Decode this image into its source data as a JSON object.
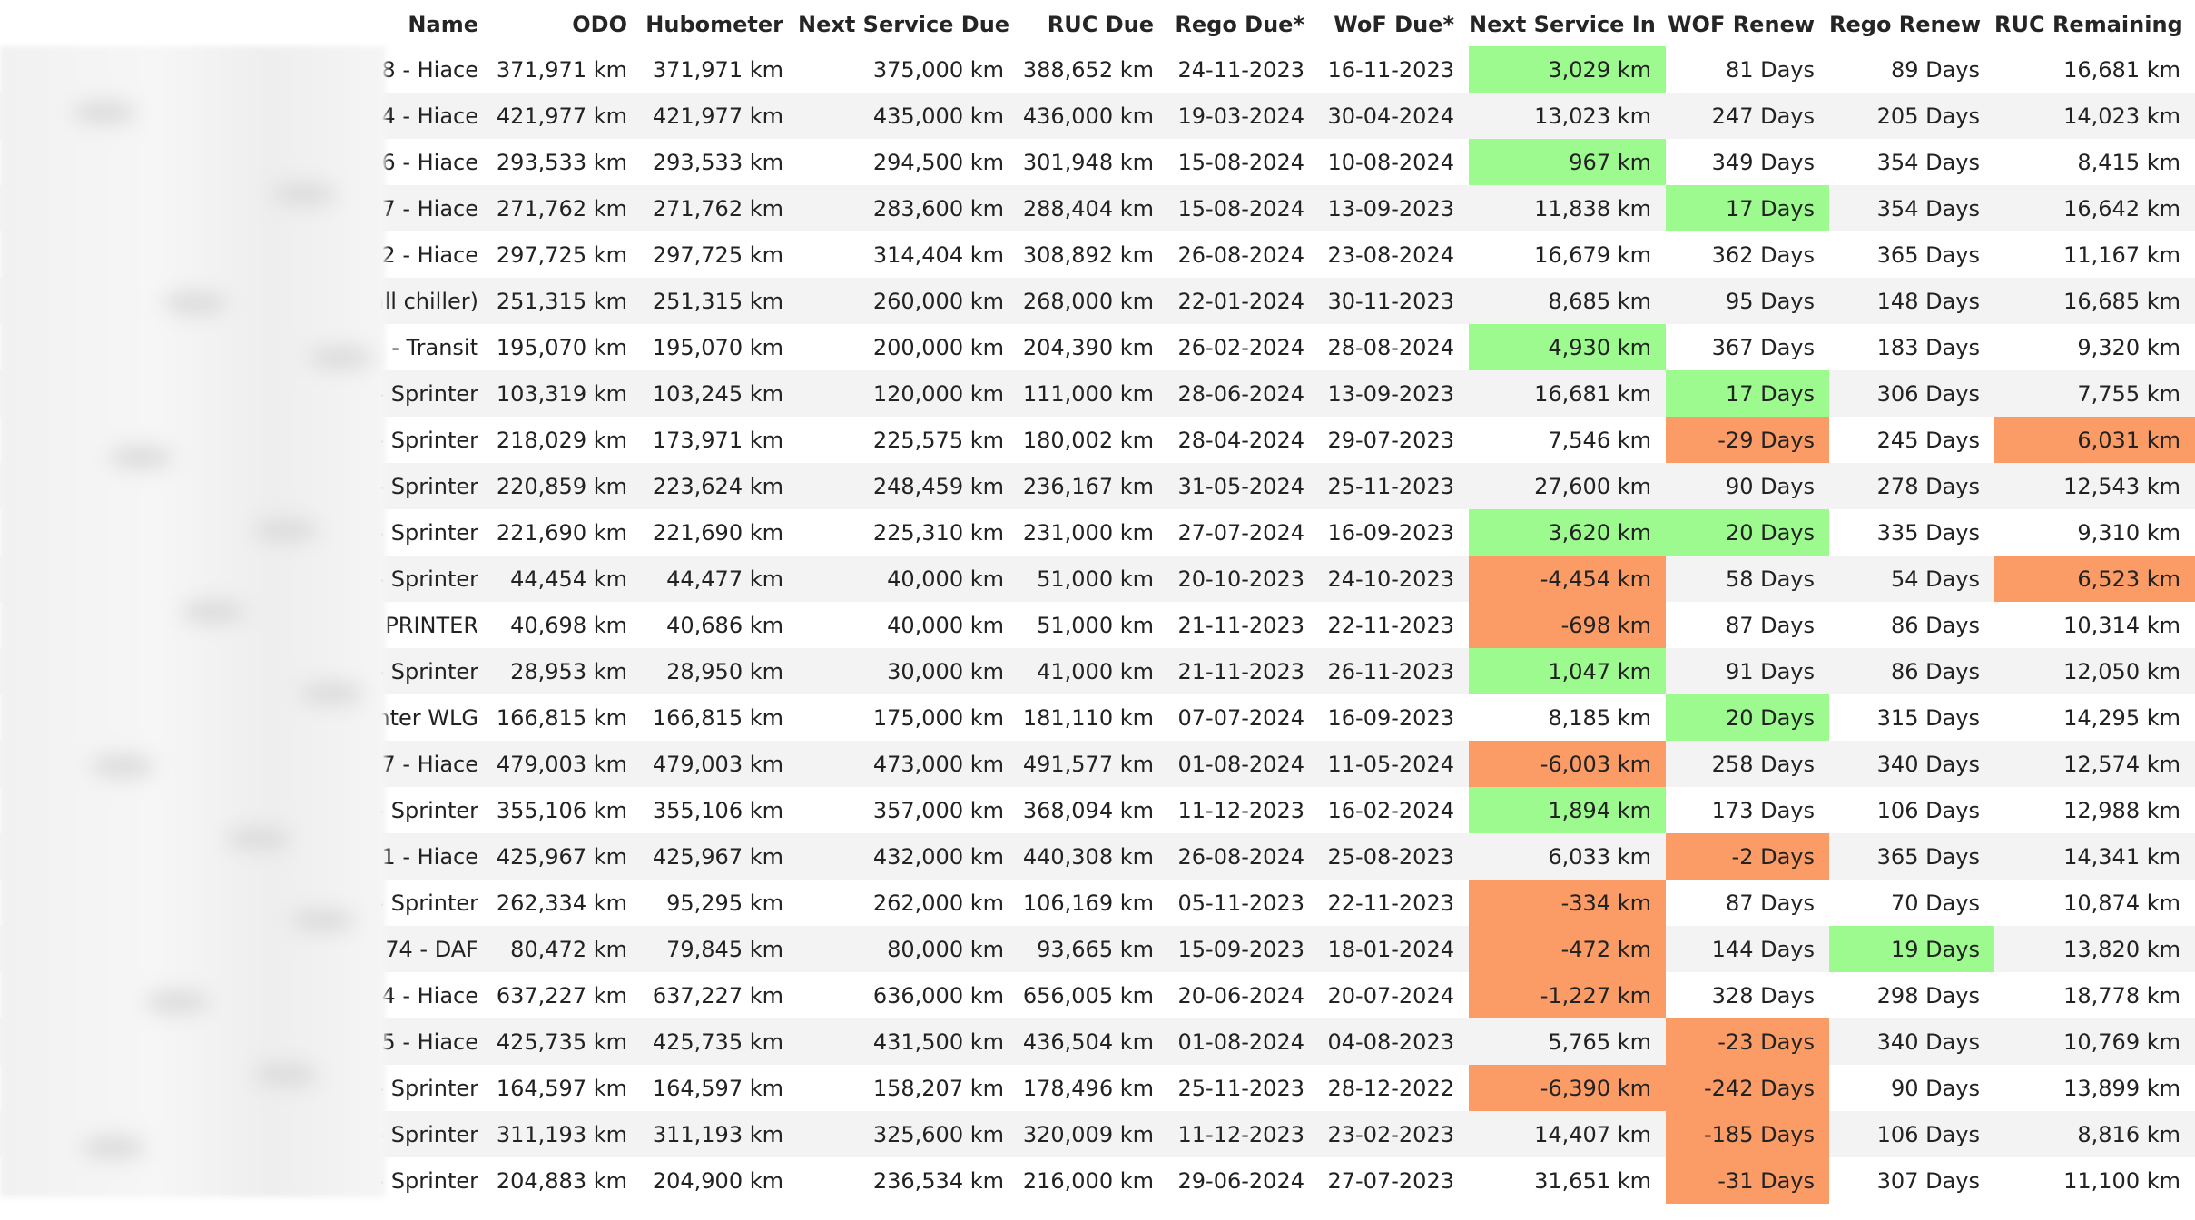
{
  "columns": [
    "Name",
    "ODO",
    "Hubometer",
    "Next Service Due",
    "RUC Due",
    "Rego Due*",
    "WoF Due*",
    "Next Service In",
    "WOF Renew",
    "Rego Renew",
    "RUC Remaining"
  ],
  "colors": {
    "good": "#9cfa8e",
    "bad": "#fb9b65",
    "stripe": "#f3f3f3"
  },
  "rows": [
    {
      "name": "8 - Hiace",
      "odo": "371,971 km",
      "hub": "371,971 km",
      "next_service_due": "375,000 km",
      "ruc_due": "388,652 km",
      "rego_due": "24-11-2023",
      "wof_due": "16-11-2023",
      "next_service_in": "3,029 km",
      "wof_renew": "81 Days",
      "rego_renew": "89 Days",
      "ruc_remaining": "16,681 km",
      "hl": {
        "next_service_in": "good"
      }
    },
    {
      "name": "4 - Hiace",
      "odo": "421,977 km",
      "hub": "421,977 km",
      "next_service_due": "435,000 km",
      "ruc_due": "436,000 km",
      "rego_due": "19-03-2024",
      "wof_due": "30-04-2024",
      "next_service_in": "13,023 km",
      "wof_renew": "247 Days",
      "rego_renew": "205 Days",
      "ruc_remaining": "14,023 km",
      "hl": {}
    },
    {
      "name": "6 - Hiace",
      "odo": "293,533 km",
      "hub": "293,533 km",
      "next_service_due": "294,500 km",
      "ruc_due": "301,948 km",
      "rego_due": "15-08-2024",
      "wof_due": "10-08-2024",
      "next_service_in": "967 km",
      "wof_renew": "349 Days",
      "rego_renew": "354 Days",
      "ruc_remaining": "8,415 km",
      "hl": {
        "next_service_in": "good"
      }
    },
    {
      "name": "7 - Hiace",
      "odo": "271,762 km",
      "hub": "271,762 km",
      "next_service_due": "283,600 km",
      "ruc_due": "288,404 km",
      "rego_due": "15-08-2024",
      "wof_due": "13-09-2023",
      "next_service_in": "11,838 km",
      "wof_renew": "17 Days",
      "rego_renew": "354 Days",
      "ruc_remaining": "16,642 km",
      "hl": {
        "wof_renew": "good"
      }
    },
    {
      "name": "2 - Hiace",
      "odo": "297,725 km",
      "hub": "297,725 km",
      "next_service_due": "314,404 km",
      "ruc_due": "308,892 km",
      "rego_due": "26-08-2024",
      "wof_due": "23-08-2024",
      "next_service_in": "16,679 km",
      "wof_renew": "362 Days",
      "rego_renew": "365 Days",
      "ruc_remaining": "11,167 km",
      "hl": {}
    },
    {
      "name": "all chiller)",
      "odo": "251,315 km",
      "hub": "251,315 km",
      "next_service_due": "260,000 km",
      "ruc_due": "268,000 km",
      "rego_due": "22-01-2024",
      "wof_due": "30-11-2023",
      "next_service_in": "8,685 km",
      "wof_renew": "95 Days",
      "rego_renew": "148 Days",
      "ruc_remaining": "16,685 km",
      "hl": {}
    },
    {
      "name": "- Transit",
      "odo": "195,070 km",
      "hub": "195,070 km",
      "next_service_due": "200,000 km",
      "ruc_due": "204,390 km",
      "rego_due": "26-02-2024",
      "wof_due": "28-08-2024",
      "next_service_in": "4,930 km",
      "wof_renew": "367 Days",
      "rego_renew": "183 Days",
      "ruc_remaining": "9,320 km",
      "hl": {
        "next_service_in": "good"
      }
    },
    {
      "name": "- Sprinter",
      "odo": "103,319 km",
      "hub": "103,245 km",
      "next_service_due": "120,000 km",
      "ruc_due": "111,000 km",
      "rego_due": "28-06-2024",
      "wof_due": "13-09-2023",
      "next_service_in": "16,681 km",
      "wof_renew": "17 Days",
      "rego_renew": "306 Days",
      "ruc_remaining": "7,755 km",
      "hl": {
        "wof_renew": "good"
      }
    },
    {
      "name": "- Sprinter",
      "odo": "218,029 km",
      "hub": "173,971 km",
      "next_service_due": "225,575 km",
      "ruc_due": "180,002 km",
      "rego_due": "28-04-2024",
      "wof_due": "29-07-2023",
      "next_service_in": "7,546 km",
      "wof_renew": "-29 Days",
      "rego_renew": "245 Days",
      "ruc_remaining": "6,031 km",
      "hl": {
        "wof_renew": "bad",
        "ruc_remaining": "bad"
      }
    },
    {
      "name": "- Sprinter",
      "odo": "220,859 km",
      "hub": "223,624 km",
      "next_service_due": "248,459 km",
      "ruc_due": "236,167 km",
      "rego_due": "31-05-2024",
      "wof_due": "25-11-2023",
      "next_service_in": "27,600 km",
      "wof_renew": "90 Days",
      "rego_renew": "278 Days",
      "ruc_remaining": "12,543 km",
      "hl": {}
    },
    {
      "name": "- Sprinter",
      "odo": "221,690 km",
      "hub": "221,690 km",
      "next_service_due": "225,310 km",
      "ruc_due": "231,000 km",
      "rego_due": "27-07-2024",
      "wof_due": "16-09-2023",
      "next_service_in": "3,620 km",
      "wof_renew": "20 Days",
      "rego_renew": "335 Days",
      "ruc_remaining": "9,310 km",
      "hl": {
        "next_service_in": "good",
        "wof_renew": "good"
      }
    },
    {
      "name": "- Sprinter",
      "odo": "44,454 km",
      "hub": "44,477 km",
      "next_service_due": "40,000 km",
      "ruc_due": "51,000 km",
      "rego_due": "20-10-2023",
      "wof_due": "24-10-2023",
      "next_service_in": "-4,454 km",
      "wof_renew": "58 Days",
      "rego_renew": "54 Days",
      "ruc_remaining": "6,523 km",
      "hl": {
        "next_service_in": "bad",
        "ruc_remaining": "bad"
      }
    },
    {
      "name": "PRINTER",
      "odo": "40,698 km",
      "hub": "40,686 km",
      "next_service_due": "40,000 km",
      "ruc_due": "51,000 km",
      "rego_due": "21-11-2023",
      "wof_due": "22-11-2023",
      "next_service_in": "-698 km",
      "wof_renew": "87 Days",
      "rego_renew": "86 Days",
      "ruc_remaining": "10,314 km",
      "hl": {
        "next_service_in": "bad"
      }
    },
    {
      "name": "- Sprinter",
      "odo": "28,953 km",
      "hub": "28,950 km",
      "next_service_due": "30,000 km",
      "ruc_due": "41,000 km",
      "rego_due": "21-11-2023",
      "wof_due": "26-11-2023",
      "next_service_in": "1,047 km",
      "wof_renew": "91 Days",
      "rego_renew": "86 Days",
      "ruc_remaining": "12,050 km",
      "hl": {
        "next_service_in": "good"
      }
    },
    {
      "name": "nter WLG",
      "odo": "166,815 km",
      "hub": "166,815 km",
      "next_service_due": "175,000 km",
      "ruc_due": "181,110 km",
      "rego_due": "07-07-2024",
      "wof_due": "16-09-2023",
      "next_service_in": "8,185 km",
      "wof_renew": "20 Days",
      "rego_renew": "315 Days",
      "ruc_remaining": "14,295 km",
      "hl": {
        "wof_renew": "good"
      }
    },
    {
      "name": "7 - Hiace",
      "odo": "479,003 km",
      "hub": "479,003 km",
      "next_service_due": "473,000 km",
      "ruc_due": "491,577 km",
      "rego_due": "01-08-2024",
      "wof_due": "11-05-2024",
      "next_service_in": "-6,003 km",
      "wof_renew": "258 Days",
      "rego_renew": "340 Days",
      "ruc_remaining": "12,574 km",
      "hl": {
        "next_service_in": "bad"
      }
    },
    {
      "name": "- Sprinter",
      "odo": "355,106 km",
      "hub": "355,106 km",
      "next_service_due": "357,000 km",
      "ruc_due": "368,094 km",
      "rego_due": "11-12-2023",
      "wof_due": "16-02-2024",
      "next_service_in": "1,894 km",
      "wof_renew": "173 Days",
      "rego_renew": "106 Days",
      "ruc_remaining": "12,988 km",
      "hl": {
        "next_service_in": "good"
      }
    },
    {
      "name": "1 - Hiace",
      "odo": "425,967 km",
      "hub": "425,967 km",
      "next_service_due": "432,000 km",
      "ruc_due": "440,308 km",
      "rego_due": "26-08-2024",
      "wof_due": "25-08-2023",
      "next_service_in": "6,033 km",
      "wof_renew": "-2 Days",
      "rego_renew": "365 Days",
      "ruc_remaining": "14,341 km",
      "hl": {
        "wof_renew": "bad"
      }
    },
    {
      "name": "- Sprinter",
      "odo": "262,334 km",
      "hub": "95,295 km",
      "next_service_due": "262,000 km",
      "ruc_due": "106,169 km",
      "rego_due": "05-11-2023",
      "wof_due": "22-11-2023",
      "next_service_in": "-334 km",
      "wof_renew": "87 Days",
      "rego_renew": "70 Days",
      "ruc_remaining": "10,874 km",
      "hl": {
        "next_service_in": "bad"
      }
    },
    {
      "name": "74 - DAF",
      "odo": "80,472 km",
      "hub": "79,845 km",
      "next_service_due": "80,000 km",
      "ruc_due": "93,665 km",
      "rego_due": "15-09-2023",
      "wof_due": "18-01-2024",
      "next_service_in": "-472 km",
      "wof_renew": "144 Days",
      "rego_renew": "19 Days",
      "ruc_remaining": "13,820 km",
      "hl": {
        "next_service_in": "bad",
        "rego_renew": "good"
      }
    },
    {
      "name": "4 - Hiace",
      "odo": "637,227 km",
      "hub": "637,227 km",
      "next_service_due": "636,000 km",
      "ruc_due": "656,005 km",
      "rego_due": "20-06-2024",
      "wof_due": "20-07-2024",
      "next_service_in": "-1,227 km",
      "wof_renew": "328 Days",
      "rego_renew": "298 Days",
      "ruc_remaining": "18,778 km",
      "hl": {
        "next_service_in": "bad"
      }
    },
    {
      "name": "5 - Hiace",
      "odo": "425,735 km",
      "hub": "425,735 km",
      "next_service_due": "431,500 km",
      "ruc_due": "436,504 km",
      "rego_due": "01-08-2024",
      "wof_due": "04-08-2023",
      "next_service_in": "5,765 km",
      "wof_renew": "-23 Days",
      "rego_renew": "340 Days",
      "ruc_remaining": "10,769 km",
      "hl": {
        "wof_renew": "bad"
      }
    },
    {
      "name": "- Sprinter",
      "odo": "164,597 km",
      "hub": "164,597 km",
      "next_service_due": "158,207 km",
      "ruc_due": "178,496 km",
      "rego_due": "25-11-2023",
      "wof_due": "28-12-2022",
      "next_service_in": "-6,390 km",
      "wof_renew": "-242 Days",
      "rego_renew": "90 Days",
      "ruc_remaining": "13,899 km",
      "hl": {
        "next_service_in": "bad",
        "wof_renew": "bad"
      }
    },
    {
      "name": "- Sprinter",
      "odo": "311,193 km",
      "hub": "311,193 km",
      "next_service_due": "325,600 km",
      "ruc_due": "320,009 km",
      "rego_due": "11-12-2023",
      "wof_due": "23-02-2023",
      "next_service_in": "14,407 km",
      "wof_renew": "-185 Days",
      "rego_renew": "106 Days",
      "ruc_remaining": "8,816 km",
      "hl": {
        "wof_renew": "bad"
      }
    },
    {
      "name": "- Sprinter",
      "odo": "204,883 km",
      "hub": "204,900 km",
      "next_service_due": "236,534 km",
      "ruc_due": "216,000 km",
      "rego_due": "29-06-2024",
      "wof_due": "27-07-2023",
      "next_service_in": "31,651 km",
      "wof_renew": "-31 Days",
      "rego_renew": "307 Days",
      "ruc_remaining": "11,100 km",
      "hl": {
        "wof_renew": "bad"
      }
    }
  ]
}
